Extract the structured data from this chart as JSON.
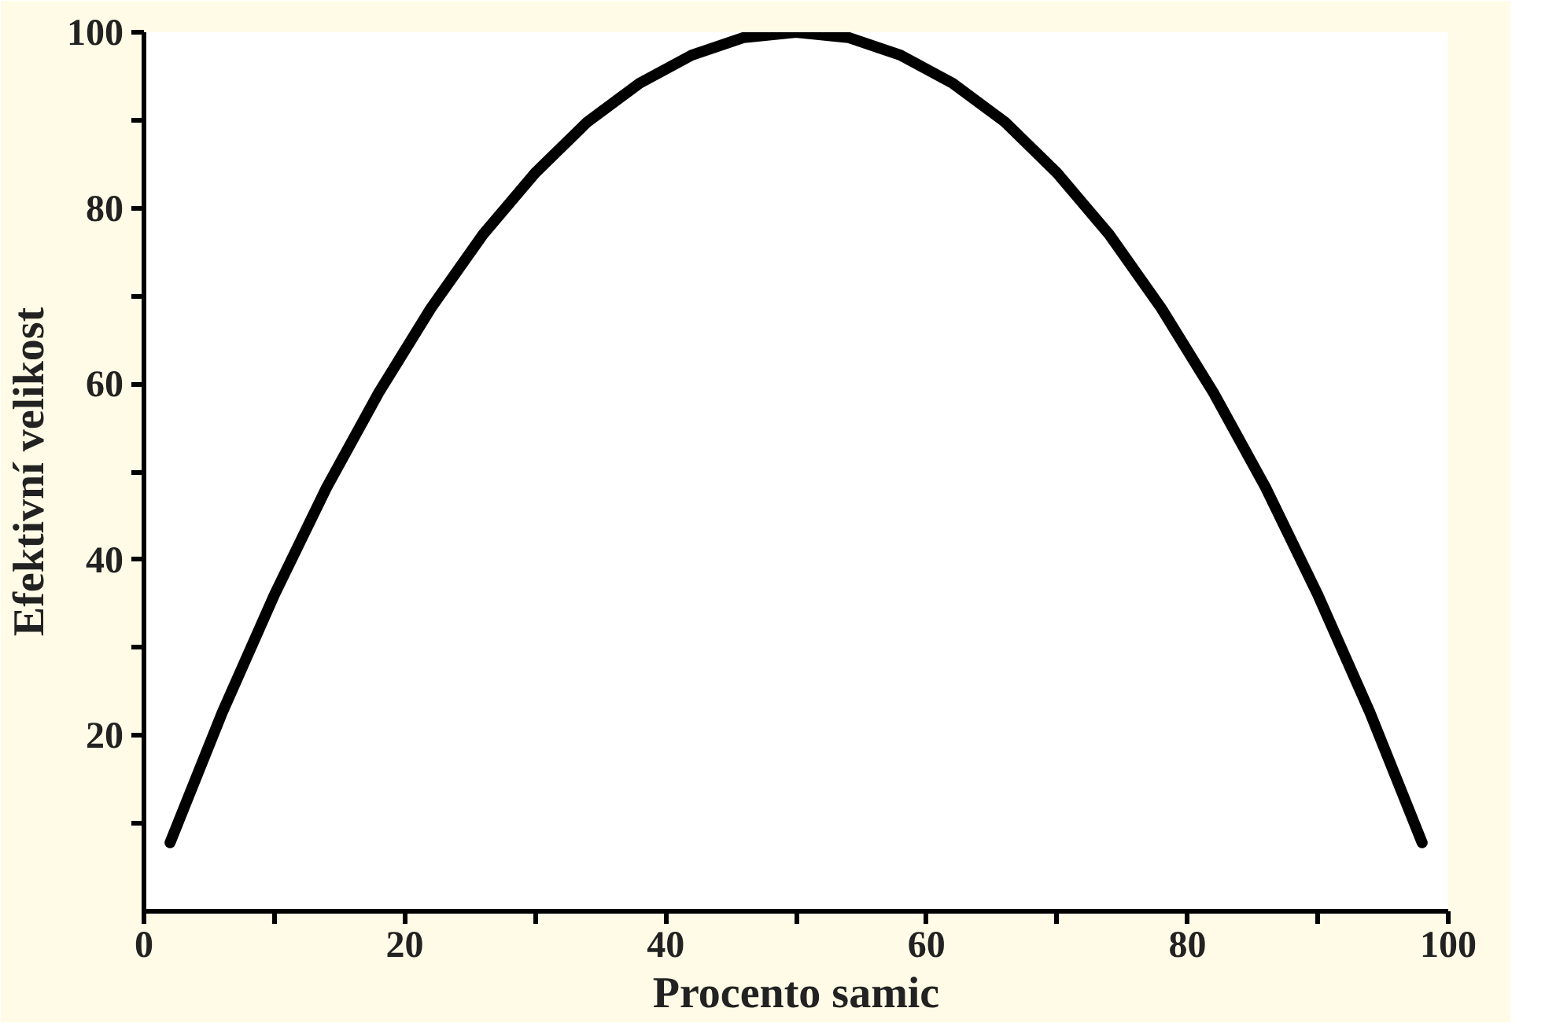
{
  "chart_data": {
    "type": "line",
    "xlabel": "Procento samic",
    "ylabel": "Efektivní velikost",
    "x": [
      2,
      6,
      10,
      14,
      18,
      22,
      26,
      30,
      34,
      38,
      42,
      46,
      50,
      54,
      58,
      62,
      66,
      70,
      74,
      78,
      82,
      86,
      90,
      94,
      98
    ],
    "series": [
      {
        "color": "#000000",
        "values": [
          7.8,
          22.6,
          36,
          48.2,
          59,
          68.6,
          77,
          84,
          89.8,
          94.2,
          97.4,
          99.4,
          100,
          99.4,
          97.4,
          94.2,
          89.8,
          84,
          77,
          68.6,
          59,
          48.2,
          36,
          22.6,
          7.8
        ]
      }
    ],
    "xlim": [
      0,
      100
    ],
    "ylim": [
      0,
      100
    ],
    "xticks": [
      0,
      {
        "value": 10,
        "label": null
      },
      20,
      {
        "value": 30,
        "label": null
      },
      40,
      {
        "value": 50,
        "label": null
      },
      60,
      {
        "value": 70,
        "label": null
      },
      80,
      {
        "value": 90,
        "label": null
      },
      100
    ],
    "yticks": [
      {
        "value": 10,
        "label": null
      },
      20,
      {
        "value": 30,
        "label": null
      },
      40,
      {
        "value": 50,
        "label": null
      },
      60,
      {
        "value": 70,
        "label": null
      },
      80,
      {
        "value": 90,
        "label": null
      },
      100
    ],
    "grid": false,
    "marker": "none",
    "line_style": "solid"
  }
}
